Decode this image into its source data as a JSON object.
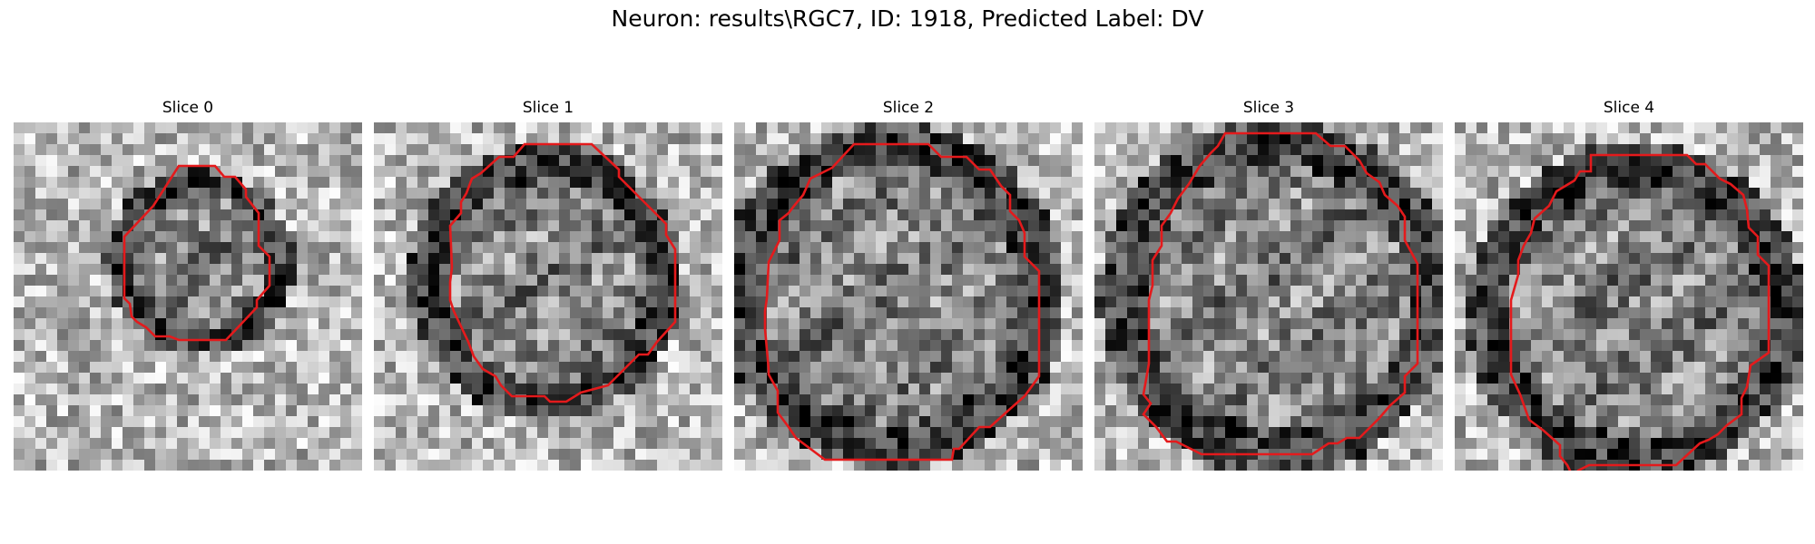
{
  "figure": {
    "title": "Neuron: results\\RGC7, ID: 1918, Predicted Label: DV"
  },
  "panels": [
    {
      "title": "Slice 0",
      "seed": 11,
      "dark_center": 0.45,
      "contour_color": "#e41a1c"
    },
    {
      "title": "Slice 1",
      "seed": 23,
      "dark_center": 0.5,
      "contour_color": "#e41a1c"
    },
    {
      "title": "Slice 2",
      "seed": 37,
      "dark_center": 0.55,
      "contour_color": "#e41a1c"
    },
    {
      "title": "Slice 3",
      "seed": 41,
      "dark_center": 0.35,
      "contour_color": "#e41a1c"
    },
    {
      "title": "Slice 4",
      "seed": 53,
      "dark_center": 0.4,
      "contour_color": "#e41a1c"
    }
  ],
  "colormap": "gray",
  "grid": 32
}
